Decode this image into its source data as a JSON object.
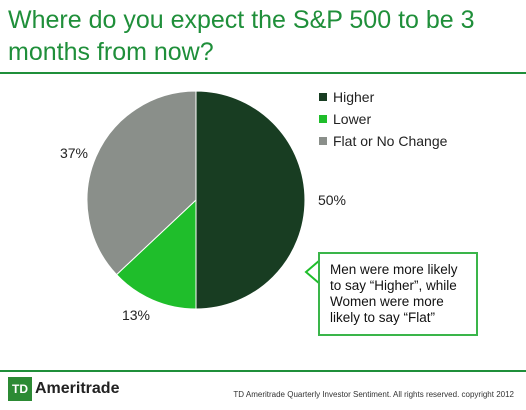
{
  "title": "Where do you expect the S&P 500 to be 3 months from now?",
  "colors": {
    "accent": "#1f8f3a",
    "higher": "#183d22",
    "lower": "#1fbe2b",
    "flat": "#8a8f8a"
  },
  "callout": "Men were more likely to say “Higher”, while Women were more likely to say “Flat”",
  "footer": {
    "logo_mark": "TD",
    "logo_text": "Ameritrade",
    "note": "TD Ameritrade Quarterly Investor Sentiment. All rights reserved. copyright 2012"
  },
  "chart_data": {
    "type": "pie",
    "title": "Where do you expect the S&P 500 to be 3 months from now?",
    "slices": [
      {
        "label": "Higher",
        "value": 50,
        "display": "50%",
        "color": "#183d22"
      },
      {
        "label": "Lower",
        "value": 13,
        "display": "13%",
        "color": "#1fbe2b"
      },
      {
        "label": "Flat or No Change",
        "value": 37,
        "display": "37%",
        "color": "#8a8f8a"
      }
    ],
    "legend_position": "right"
  }
}
